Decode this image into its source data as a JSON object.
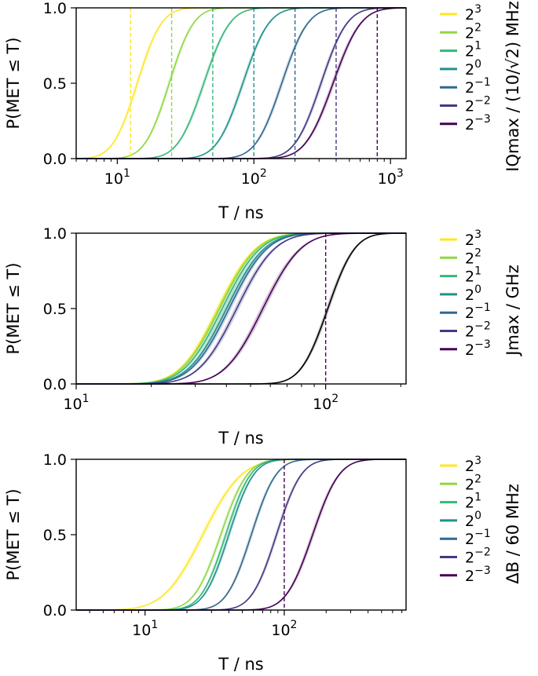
{
  "palette": [
    "#fde725",
    "#90d743",
    "#35b779",
    "#21918c",
    "#31688e",
    "#443983",
    "#440154"
  ],
  "chart_data": [
    {
      "type": "line",
      "title": "",
      "xscale": "log",
      "xlim": [
        5,
        1300
      ],
      "ylim": [
        0,
        1
      ],
      "xlabel": "T / ns",
      "ylabel": "P(MET ≤ T)",
      "xticks": [
        {
          "value": 10,
          "base": "10",
          "exp": "1"
        },
        {
          "value": 100,
          "base": "10",
          "exp": "2"
        },
        {
          "value": 1000,
          "base": "10",
          "exp": "3"
        }
      ],
      "yticks": [
        "0.0",
        "0.5",
        "1.0"
      ],
      "legend_title": "IQmax / (10/√2) MHz",
      "legend_position": "right",
      "series": [
        {
          "name": "2^3",
          "base": "2",
          "exp": "3",
          "t50": 14,
          "spread": 0.14,
          "vline": 12.5
        },
        {
          "name": "2^2",
          "base": "2",
          "exp": "2",
          "t50": 24,
          "spread": 0.14,
          "vline": 25
        },
        {
          "name": "2^1",
          "base": "2",
          "exp": "1",
          "t50": 43,
          "spread": 0.15,
          "vline": 50
        },
        {
          "name": "2^0",
          "base": "2",
          "exp": "0",
          "t50": 83,
          "spread": 0.15,
          "vline": 100
        },
        {
          "name": "2^-1",
          "base": "2",
          "exp": "−1",
          "t50": 160,
          "spread": 0.15,
          "vline": 200
        },
        {
          "name": "2^-2",
          "base": "2",
          "exp": "−2",
          "t50": 310,
          "spread": 0.15,
          "vline": 400
        },
        {
          "name": "2^-3",
          "base": "2",
          "exp": "−3",
          "t50": 380,
          "spread": 0.16,
          "vline": 800
        }
      ]
    },
    {
      "type": "line",
      "title": "",
      "xscale": "log",
      "xlim": [
        10,
        210
      ],
      "ylim": [
        0,
        1
      ],
      "xlabel": "T / ns",
      "ylabel": "P(MET ≤ T)",
      "xticks": [
        {
          "value": 10,
          "base": "10",
          "exp": "1"
        },
        {
          "value": 100,
          "base": "10",
          "exp": "2"
        }
      ],
      "yticks": [
        "0.0",
        "0.5",
        "1.0"
      ],
      "legend_title": "Jmax / GHz",
      "legend_position": "right",
      "series": [
        {
          "name": "2^3",
          "base": "2",
          "exp": "3",
          "t50": 37,
          "spread": 0.12,
          "vline": null
        },
        {
          "name": "2^2",
          "base": "2",
          "exp": "2",
          "t50": 37.5,
          "spread": 0.12,
          "vline": null
        },
        {
          "name": "2^1",
          "base": "2",
          "exp": "1",
          "t50": 38.5,
          "spread": 0.12,
          "vline": null
        },
        {
          "name": "2^0",
          "base": "2",
          "exp": "0",
          "t50": 40,
          "spread": 0.12,
          "vline": null
        },
        {
          "name": "2^-1",
          "base": "2",
          "exp": "−1",
          "t50": 41,
          "spread": 0.12,
          "vline": null
        },
        {
          "name": "2^-2",
          "base": "2",
          "exp": "−2",
          "t50": 44,
          "spread": 0.12,
          "vline": null
        },
        {
          "name": "2^-3",
          "base": "2",
          "exp": "−3",
          "t50": 56,
          "spread": 0.12,
          "vline": 100
        }
      ],
      "reference": {
        "name": "reference",
        "color": "#000000",
        "t50": 102,
        "spread": 0.085
      }
    },
    {
      "type": "line",
      "title": "",
      "xscale": "log",
      "xlim": [
        3.2,
        750
      ],
      "ylim": [
        0,
        1
      ],
      "xlabel": "T / ns",
      "ylabel": "P(MET ≤ T)",
      "xticks": [
        {
          "value": 10,
          "base": "10",
          "exp": "1"
        },
        {
          "value": 100,
          "base": "10",
          "exp": "2"
        }
      ],
      "yticks": [
        "0.0",
        "0.5",
        "1.0"
      ],
      "legend_title": "ΔB / 60 MHz",
      "legend_position": "right",
      "series": [
        {
          "name": "2^3",
          "base": "2",
          "exp": "3",
          "t50": 26,
          "spread": 0.22,
          "vline": null
        },
        {
          "name": "2^2",
          "base": "2",
          "exp": "2",
          "t50": 35,
          "spread": 0.15,
          "vline": null
        },
        {
          "name": "2^1",
          "base": "2",
          "exp": "1",
          "t50": 38,
          "spread": 0.14,
          "vline": null
        },
        {
          "name": "2^0",
          "base": "2",
          "exp": "0",
          "t50": 40,
          "spread": 0.14,
          "vline": null
        },
        {
          "name": "2^-1",
          "base": "2",
          "exp": "−1",
          "t50": 58,
          "spread": 0.14,
          "vline": null
        },
        {
          "name": "2^-2",
          "base": "2",
          "exp": "−2",
          "t50": 88,
          "spread": 0.14,
          "vline": null
        },
        {
          "name": "2^-3",
          "base": "2",
          "exp": "−3",
          "t50": 160,
          "spread": 0.15,
          "vline": 100
        }
      ]
    }
  ]
}
